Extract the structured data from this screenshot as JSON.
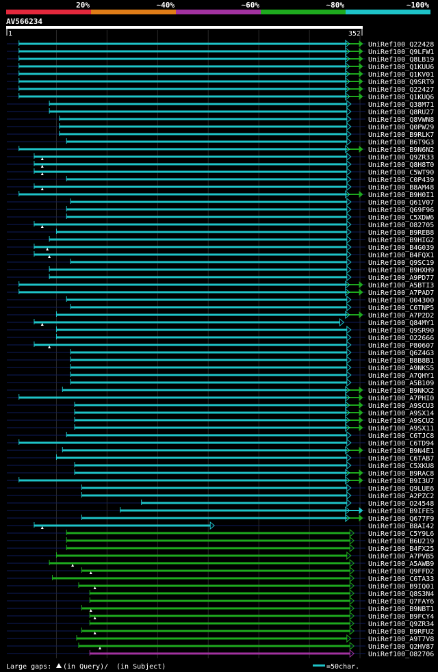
{
  "chart_data": {
    "type": "alignment-overview",
    "query_name": "AV566234",
    "query_range": [
      1,
      352
    ],
    "query_start_label": "1",
    "query_end_label": "352",
    "identity_legend": [
      {
        "label": "20%",
        "color": "#e3283c"
      },
      {
        "label": "~40%",
        "color": "#e07d18"
      },
      {
        "label": "~60%",
        "color": "#a232a0"
      },
      {
        "label": "~80%",
        "color": "#1eaa1e"
      },
      {
        "label": "~100%",
        "color": "#1ec3c8"
      }
    ],
    "colors": {
      "cyan": "#1ec3c8",
      "green": "#1eaa1e",
      "magenta": "#a232a0",
      "faint": "#0e1d5c"
    },
    "hits": [
      {
        "name": "UniRef100_Q22428",
        "start": 13,
        "end": 337,
        "color": "cyan",
        "tail": "green"
      },
      {
        "name": "UniRef100_Q9LFW1",
        "start": 13,
        "end": 337,
        "color": "cyan",
        "tail": "green"
      },
      {
        "name": "UniRef100_Q8LB19",
        "start": 13,
        "end": 337,
        "color": "cyan",
        "tail": "green"
      },
      {
        "name": "UniRef100_Q1KUU6",
        "start": 13,
        "end": 337,
        "color": "cyan",
        "tail": "green"
      },
      {
        "name": "UniRef100_Q1KV01",
        "start": 13,
        "end": 337,
        "color": "cyan",
        "tail": "green"
      },
      {
        "name": "UniRef100_Q9SRT9",
        "start": 13,
        "end": 337,
        "color": "cyan",
        "tail": "green"
      },
      {
        "name": "UniRef100_Q22427",
        "start": 13,
        "end": 337,
        "color": "cyan",
        "tail": "green"
      },
      {
        "name": "UniRef100_Q1KUQ6",
        "start": 13,
        "end": 337,
        "color": "cyan",
        "tail": "green"
      },
      {
        "name": "UniRef100_Q38M71",
        "start": 43,
        "end": 337,
        "color": "cyan"
      },
      {
        "name": "UniRef100_Q8RU27",
        "start": 43,
        "end": 337,
        "color": "cyan"
      },
      {
        "name": "UniRef100_Q8VWN8",
        "start": 53,
        "end": 337,
        "color": "cyan"
      },
      {
        "name": "UniRef100_Q0PW29",
        "start": 53,
        "end": 337,
        "color": "cyan"
      },
      {
        "name": "UniRef100_B9RLK7",
        "start": 53,
        "end": 337,
        "color": "cyan"
      },
      {
        "name": "UniRef100_B6T9G3",
        "start": 60,
        "end": 337,
        "color": "cyan"
      },
      {
        "name": "UniRef100_B9N6N2",
        "start": 13,
        "end": 337,
        "color": "cyan",
        "tail": "green"
      },
      {
        "name": "UniRef100_Q9ZR33",
        "start": 28,
        "end": 337,
        "color": "cyan",
        "gap": 36
      },
      {
        "name": "UniRef100_Q8H8T0",
        "start": 28,
        "end": 337,
        "color": "cyan",
        "gap": 36
      },
      {
        "name": "UniRef100_C5WT90",
        "start": 28,
        "end": 337,
        "color": "cyan",
        "gap": 36
      },
      {
        "name": "UniRef100_C0P439",
        "start": 60,
        "end": 337,
        "color": "cyan"
      },
      {
        "name": "UniRef100_B8AM48",
        "start": 28,
        "end": 337,
        "color": "cyan",
        "gap": 36
      },
      {
        "name": "UniRef100_B9H0I1",
        "start": 13,
        "end": 337,
        "color": "cyan",
        "tail": "green"
      },
      {
        "name": "UniRef100_Q61V07",
        "start": 64,
        "end": 337,
        "color": "cyan"
      },
      {
        "name": "UniRef100_Q69F96",
        "start": 60,
        "end": 337,
        "color": "cyan"
      },
      {
        "name": "UniRef100_C5XDW6",
        "start": 60,
        "end": 337,
        "color": "cyan"
      },
      {
        "name": "UniRef100_O82705",
        "start": 28,
        "end": 337,
        "color": "cyan",
        "gap": 36
      },
      {
        "name": "UniRef100_B9REB8",
        "start": 50,
        "end": 337,
        "color": "cyan"
      },
      {
        "name": "UniRef100_B9HIG2",
        "start": 43,
        "end": 337,
        "color": "cyan"
      },
      {
        "name": "UniRef100_B4G039",
        "start": 28,
        "end": 337,
        "color": "cyan",
        "gap": 41
      },
      {
        "name": "UniRef100_B4FQX1",
        "start": 28,
        "end": 337,
        "color": "cyan",
        "gap": 43
      },
      {
        "name": "UniRef100_Q9SC19",
        "start": 64,
        "end": 337,
        "color": "cyan"
      },
      {
        "name": "UniRef100_B9HXH9",
        "start": 43,
        "end": 337,
        "color": "cyan"
      },
      {
        "name": "UniRef100_A9PD77",
        "start": 43,
        "end": 337,
        "color": "cyan"
      },
      {
        "name": "UniRef100_A5BTI3",
        "start": 13,
        "end": 337,
        "color": "cyan",
        "tail": "green"
      },
      {
        "name": "UniRef100_A7PAD7",
        "start": 13,
        "end": 337,
        "color": "cyan",
        "tail": "green"
      },
      {
        "name": "UniRef100_O04300",
        "start": 60,
        "end": 337,
        "color": "cyan"
      },
      {
        "name": "UniRef100_C6TNP5",
        "start": 64,
        "end": 337,
        "color": "cyan"
      },
      {
        "name": "UniRef100_A7P2D2",
        "start": 50,
        "end": 337,
        "color": "cyan",
        "tail": "green"
      },
      {
        "name": "UniRef100_Q84MY1",
        "start": 28,
        "end": 330,
        "color": "cyan",
        "gap": 36
      },
      {
        "name": "UniRef100_Q9SR90",
        "start": 50,
        "end": 337,
        "color": "cyan"
      },
      {
        "name": "UniRef100_O22666",
        "start": 50,
        "end": 337,
        "color": "cyan"
      },
      {
        "name": "UniRef100_P80607",
        "start": 28,
        "end": 337,
        "color": "cyan",
        "gap": 43
      },
      {
        "name": "UniRef100_Q6Z4G3",
        "start": 64,
        "end": 337,
        "color": "cyan"
      },
      {
        "name": "UniRef100_B8B8B1",
        "start": 64,
        "end": 337,
        "color": "cyan"
      },
      {
        "name": "UniRef100_A9NKS5",
        "start": 64,
        "end": 337,
        "color": "cyan"
      },
      {
        "name": "UniRef100_A7QHY1",
        "start": 64,
        "end": 337,
        "color": "cyan"
      },
      {
        "name": "UniRef100_A5B109",
        "start": 64,
        "end": 337,
        "color": "cyan"
      },
      {
        "name": "UniRef100_B9NKX2",
        "start": 56,
        "end": 337,
        "color": "cyan",
        "tail": "green"
      },
      {
        "name": "UniRef100_A7PHI0",
        "start": 13,
        "end": 337,
        "color": "cyan",
        "tail": "green"
      },
      {
        "name": "UniRef100_A9SCU3",
        "start": 68,
        "end": 337,
        "color": "cyan",
        "tail": "green"
      },
      {
        "name": "UniRef100_A9SX14",
        "start": 68,
        "end": 337,
        "color": "cyan",
        "tail": "green"
      },
      {
        "name": "UniRef100_A9SCU2",
        "start": 68,
        "end": 337,
        "color": "cyan",
        "tail": "green"
      },
      {
        "name": "UniRef100_A9SX11",
        "start": 68,
        "end": 337,
        "color": "cyan",
        "tail": "green"
      },
      {
        "name": "UniRef100_C6TJC8",
        "start": 60,
        "end": 337,
        "color": "cyan"
      },
      {
        "name": "UniRef100_C6TD94",
        "start": 13,
        "end": 337,
        "color": "cyan"
      },
      {
        "name": "UniRef100_B9N4E1",
        "start": 56,
        "end": 337,
        "color": "cyan",
        "tail": "green"
      },
      {
        "name": "UniRef100_C6TAB7",
        "start": 50,
        "end": 337,
        "color": "cyan"
      },
      {
        "name": "UniRef100_C5XKU8",
        "start": 68,
        "end": 337,
        "color": "cyan"
      },
      {
        "name": "UniRef100_B9RAC8",
        "start": 68,
        "end": 337,
        "color": "cyan",
        "tail": "green"
      },
      {
        "name": "UniRef100_B9I3U7",
        "start": 13,
        "end": 337,
        "color": "cyan",
        "tail": "green"
      },
      {
        "name": "UniRef100_Q9LUE6",
        "start": 75,
        "end": 337,
        "color": "cyan"
      },
      {
        "name": "UniRef100_A2PZC2",
        "start": 75,
        "end": 337,
        "color": "cyan"
      },
      {
        "name": "UniRef100_O24548",
        "start": 134,
        "end": 337,
        "color": "cyan"
      },
      {
        "name": "UniRef100_B9IFE5",
        "start": 113,
        "end": 337,
        "color": "cyan",
        "tail": "cyan"
      },
      {
        "name": "UniRef100_Q677F9",
        "start": 75,
        "end": 337,
        "color": "cyan",
        "tail": "green"
      },
      {
        "name": "UniRef100_B8AI42",
        "start": 28,
        "end": 202,
        "color": "cyan",
        "gap": 36
      },
      {
        "name": "UniRef100_C5Y9L6",
        "start": 60,
        "end": 340,
        "color": "green"
      },
      {
        "name": "UniRef100_B6U219",
        "start": 60,
        "end": 340,
        "color": "green"
      },
      {
        "name": "UniRef100_B4FX25",
        "start": 60,
        "end": 340,
        "color": "green"
      },
      {
        "name": "UniRef100_A7PVB5",
        "start": 50,
        "end": 337,
        "color": "green"
      },
      {
        "name": "UniRef100_A5AWB9",
        "start": 43,
        "end": 340,
        "color": "green",
        "gap": 66
      },
      {
        "name": "UniRef100_Q9FFD2",
        "start": 75,
        "end": 340,
        "color": "green",
        "gap": 84
      },
      {
        "name": "UniRef100_C6TA33",
        "start": 46,
        "end": 340,
        "color": "green"
      },
      {
        "name": "UniRef100_B9IQ01",
        "start": 72,
        "end": 340,
        "color": "green",
        "gap": 88
      },
      {
        "name": "UniRef100_Q8S3N4",
        "start": 83,
        "end": 340,
        "color": "green"
      },
      {
        "name": "UniRef100_Q7FAY6",
        "start": 83,
        "end": 340,
        "color": "green"
      },
      {
        "name": "UniRef100_B9NBT1",
        "start": 75,
        "end": 340,
        "color": "green",
        "gap": 84
      },
      {
        "name": "UniRef100_B9FCY4",
        "start": 83,
        "end": 340,
        "color": "green",
        "gap": 88
      },
      {
        "name": "UniRef100_Q9ZR34",
        "start": 83,
        "end": 340,
        "color": "green"
      },
      {
        "name": "UniRef100_B9RFU2",
        "start": 75,
        "end": 340,
        "color": "green",
        "gap": 88
      },
      {
        "name": "UniRef100_A9T7V8",
        "start": 70,
        "end": 337,
        "color": "green"
      },
      {
        "name": "UniRef100_Q2HV87",
        "start": 72,
        "end": 340,
        "color": "green",
        "gap": 93
      },
      {
        "name": "UniRef100_O82706",
        "start": 83,
        "end": 340,
        "color": "magenta"
      }
    ]
  },
  "footer": {
    "gaps_prefix": "Large gaps: ",
    "gaps_query": "(in Query)/",
    "gaps_subject": "(in Subject)",
    "scale_label": "=50char."
  }
}
